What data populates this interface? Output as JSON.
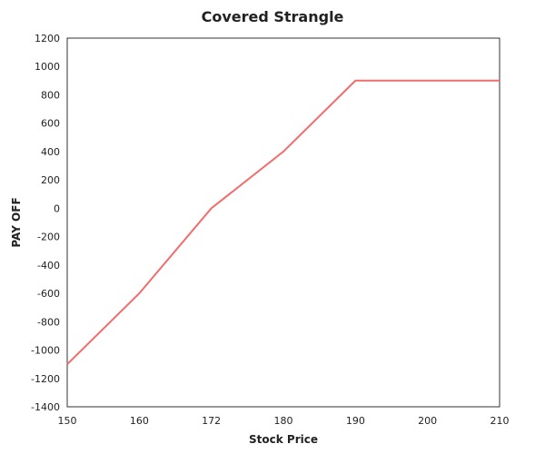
{
  "chart_data": {
    "type": "line",
    "title": "Covered Strangle",
    "xlabel": "Stock Price",
    "ylabel": "PAY OFF",
    "x_ticks": [
      150,
      160,
      172,
      180,
      190,
      200,
      210
    ],
    "y_ticks": [
      1200,
      1000,
      800,
      600,
      400,
      200,
      0,
      -200,
      -400,
      -600,
      -800,
      -1000,
      -1200,
      -1400
    ],
    "series": [
      {
        "x": [
          150,
          160,
          172,
          180,
          190,
          200,
          210
        ],
        "y": [
          -1100,
          -600,
          0,
          400,
          900,
          900,
          900
        ],
        "color": "#f36b6b"
      }
    ],
    "grid": false,
    "legend": "none"
  }
}
